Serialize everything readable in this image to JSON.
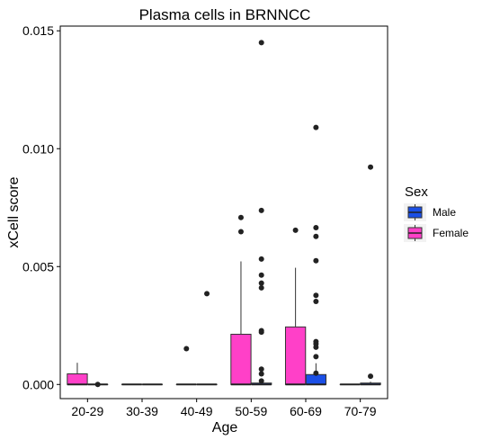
{
  "chart_data": {
    "type": "boxplot",
    "title": "Plasma cells in BRNNCC",
    "xlabel": "Age",
    "ylabel": "xCell score",
    "categories": [
      "20-29",
      "30-39",
      "40-49",
      "50-59",
      "60-69",
      "70-79"
    ],
    "ylim": [
      -0.0006,
      0.0152
    ],
    "yticks": [
      0.0,
      0.005,
      0.01,
      0.015
    ],
    "ytick_labels": [
      "0.000",
      "0.005",
      "0.010",
      "0.015"
    ],
    "grid": false,
    "legend": {
      "title": "Sex",
      "position": "right"
    },
    "series": [
      {
        "name": "Female",
        "color": "#FF40C8",
        "boxes": [
          {
            "q1": 0,
            "median": 0,
            "q3": 0.00045,
            "whisker_low": 0,
            "whisker_high": 0.00092,
            "outliers": []
          },
          {
            "q1": 0,
            "median": 0,
            "q3": 0,
            "whisker_low": 0,
            "whisker_high": 0,
            "outliers": []
          },
          {
            "q1": 0,
            "median": 0,
            "q3": 0,
            "whisker_low": 0,
            "whisker_high": 0,
            "outliers": [
              0.00152
            ]
          },
          {
            "q1": 0,
            "median": 0,
            "q3": 0.00213,
            "whisker_low": 0,
            "whisker_high": 0.00522,
            "outliers": [
              0.00708,
              0.00648
            ]
          },
          {
            "q1": 0,
            "median": 0,
            "q3": 0.00244,
            "whisker_low": 0,
            "whisker_high": 0.00495,
            "outliers": [
              0.00654
            ]
          },
          {
            "q1": 0,
            "median": 0,
            "q3": 0,
            "whisker_low": 0,
            "whisker_high": 0,
            "outliers": []
          }
        ]
      },
      {
        "name": "Male",
        "color": "#1B4FE6",
        "boxes": [
          {
            "q1": 0,
            "median": 0,
            "q3": 0,
            "whisker_low": 0,
            "whisker_high": 0,
            "outliers": [
              0.0
            ]
          },
          {
            "q1": 0,
            "median": 0,
            "q3": 0,
            "whisker_low": 0,
            "whisker_high": 0,
            "outliers": []
          },
          {
            "q1": 0,
            "median": 0,
            "q3": 0,
            "whisker_low": 0,
            "whisker_high": 0,
            "outliers": [
              0.00385
            ]
          },
          {
            "q1": 0,
            "median": 0,
            "q3": 6e-05,
            "whisker_low": 0,
            "whisker_high": 0.00012,
            "outliers": [
              0.0145,
              0.00738,
              0.00532,
              0.00464,
              0.0043,
              0.0041,
              0.00228,
              0.00222,
              0.00065,
              0.00045,
              0.00015
            ]
          },
          {
            "q1": 0,
            "median": 0,
            "q3": 0.00042,
            "whisker_low": 0,
            "whisker_high": 0.0009,
            "outliers": [
              0.0109,
              0.00665,
              0.00628,
              0.00525,
              0.00378,
              0.00352,
              0.00182,
              0.00172,
              0.00158,
              0.00118,
              0.00048
            ]
          },
          {
            "q1": 0,
            "median": 0,
            "q3": 6e-05,
            "whisker_low": 0,
            "whisker_high": 0.00012,
            "outliers": [
              0.00922,
              0.00035
            ]
          }
        ]
      }
    ]
  }
}
